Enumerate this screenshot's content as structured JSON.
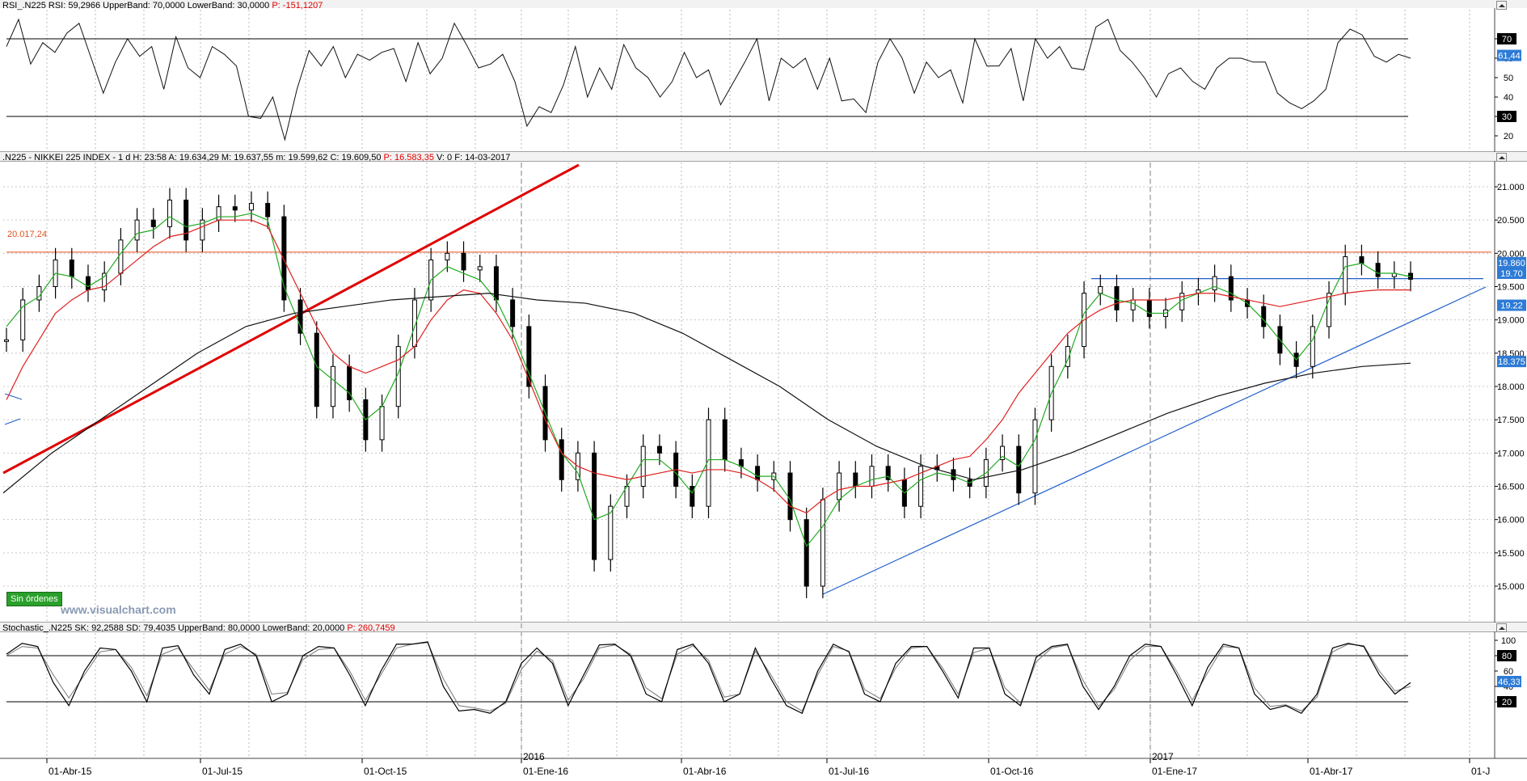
{
  "rsi_panel": {
    "name": "RSI_.N225",
    "rsi_label": "RSI: 59,2966",
    "upper_label": "UpperBand: 70,0000",
    "lower_label": "LowerBand: 30,0000",
    "p_label": "P: -151,1207",
    "y_ticks": [
      "70",
      "60",
      "50",
      "40",
      "30",
      "20"
    ],
    "levels": [
      70,
      30
    ],
    "last_value_label": "61,44",
    "upper_tag": "70",
    "lower_tag": "30"
  },
  "price_panel": {
    "name": ".N225 - NIKKEI 225 INDEX - 1 d",
    "h_label": "H: 23:58",
    "a_label": "A: 19.634,29",
    "m_label": "M: 19.637,55",
    "m2_label": "m: 19.599,62",
    "c_label": "C: 19.609,50",
    "p_label": "P: 16.583,35",
    "v_label": "V: 0",
    "f_label": "F: 14-03-2017",
    "y_ticks": [
      "21.000",
      "20.500",
      "20.000",
      "19.500",
      "19.000",
      "18.500",
      "18.000",
      "17.500",
      "17.000",
      "16.500",
      "16.000",
      "15.500",
      "15.000"
    ],
    "resistance_label": "20.017,24",
    "price_tags": [
      "19.860",
      "19.70",
      "19.22",
      "18.375"
    ],
    "status_badge": "Sin órdenes",
    "watermark": "www.visualchart.com"
  },
  "stoch_panel": {
    "name": "Stochastic_.N225",
    "sk_label": "SK: 92,2588",
    "sd_label": "SD: 79,4035",
    "upper_label": "UpperBand: 80,0000",
    "lower_label": "LowerBand: 20,0000",
    "p_label": "P: 260,7459",
    "y_ticks": [
      "100",
      "80",
      "60",
      "40",
      "20"
    ],
    "levels": [
      80,
      20
    ],
    "last_value_label": "46,33",
    "upper_tag": "80",
    "lower_tag": "20"
  },
  "x_axis": {
    "labels": [
      "01-Abr-15",
      "01-Jul-15",
      "01-Oct-15",
      "01-Ene-16",
      "01-Abr-16",
      "01-Jul-16",
      "01-Oct-16",
      "01-Ene-17",
      "01-Abr-17",
      "01-J"
    ],
    "year_labels": [
      "2016",
      "2017"
    ]
  },
  "colors": {
    "sma_fast": "#22aa22",
    "sma_mid": "#e02020",
    "sma_slow": "#111111",
    "trendline_red": "#e00000",
    "trendline_blue": "#1f5fcc",
    "resistance": "#e8501a",
    "tag_blue": "#2e7bd6",
    "badge_green": "#2aa02a"
  },
  "chart_data": [
    {
      "type": "line",
      "title": "RSI_.N225",
      "series": [
        {
          "name": "RSI",
          "values": [
            66,
            80,
            57,
            68,
            63,
            73,
            78,
            60,
            42,
            58,
            70,
            61,
            66,
            44,
            71,
            55,
            50,
            66,
            62,
            56,
            30,
            29,
            40,
            18,
            44,
            64,
            56,
            66,
            50,
            62,
            59,
            63,
            65,
            48,
            68,
            52,
            60,
            78,
            67,
            55,
            57,
            62,
            48,
            25,
            35,
            32,
            46,
            66,
            40,
            55,
            44,
            67,
            55,
            50,
            40,
            48,
            63,
            50,
            54,
            36,
            47,
            58,
            70,
            38,
            60,
            55,
            60,
            44,
            60,
            38,
            39,
            32,
            58,
            70,
            60,
            42,
            58,
            50,
            54,
            37,
            70,
            56,
            56,
            65,
            38,
            70,
            60,
            66,
            55,
            54,
            76,
            80,
            64,
            58,
            50,
            40,
            52,
            55,
            48,
            44,
            55,
            60,
            60,
            58,
            58,
            42,
            37,
            34,
            38,
            44,
            68,
            75,
            72,
            61,
            58,
            62,
            60
          ]
        }
      ],
      "ylim": [
        10,
        85
      ]
    },
    {
      "type": "line",
      "title": ".N225 - NIKKEI 225 INDEX",
      "series": [
        {
          "name": "Close",
          "values": [
            18700,
            19300,
            19500,
            19900,
            19650,
            19450,
            19700,
            20200,
            20500,
            20400,
            20800,
            20200,
            20500,
            20700,
            20650,
            20750,
            20550,
            19300,
            18800,
            17700,
            18300,
            17800,
            17200,
            17700,
            18600,
            19300,
            19900,
            20000,
            19750,
            19800,
            19300,
            18900,
            18000,
            17200,
            16600,
            17000,
            15400,
            16200,
            16500,
            17100,
            17000,
            16500,
            16200,
            17500,
            16900,
            16800,
            16600,
            16700,
            16000,
            15000,
            16300,
            16700,
            16500,
            16800,
            16600,
            16200,
            16800,
            16750,
            16600,
            16500,
            16900,
            17100,
            16400,
            17500,
            18300,
            18600,
            19400,
            19500,
            19150,
            19300,
            19050,
            19150,
            19400,
            19450,
            19650,
            19300,
            19200,
            18900,
            18500,
            18300,
            18900,
            19400,
            19950,
            19850,
            19650,
            19700,
            19610
          ]
        },
        {
          "name": "Fast MA",
          "values": [
            18900,
            19200,
            19350,
            19700,
            19650,
            19500,
            19650,
            20000,
            20300,
            20350,
            20550,
            20400,
            20450,
            20550,
            20550,
            20600,
            20500,
            19500,
            18900,
            18300,
            18100,
            17900,
            17500,
            17700,
            18200,
            18900,
            19600,
            19800,
            19700,
            19600,
            19300,
            18800,
            18200,
            17600,
            17000,
            16700,
            16000,
            16100,
            16500,
            16900,
            16900,
            16700,
            16400,
            16900,
            16900,
            16800,
            16650,
            16650,
            16300,
            15600,
            15900,
            16300,
            16500,
            16600,
            16650,
            16400,
            16600,
            16700,
            16650,
            16550,
            16700,
            16950,
            16800,
            17200,
            17900,
            18400,
            19100,
            19400,
            19300,
            19250,
            19100,
            19100,
            19300,
            19400,
            19500,
            19400,
            19250,
            19000,
            18700,
            18400,
            18700,
            19300,
            19800,
            19850,
            19700,
            19700,
            19650
          ]
        },
        {
          "name": "Mid MA",
          "values": [
            17800,
            18300,
            18700,
            19100,
            19300,
            19450,
            19500,
            19700,
            19900,
            20100,
            20250,
            20300,
            20400,
            20500,
            20500,
            20500,
            20400,
            19900,
            19400,
            18900,
            18500,
            18300,
            18200,
            18300,
            18400,
            18600,
            19000,
            19300,
            19450,
            19400,
            19100,
            18700,
            18100,
            17500,
            17000,
            16800,
            16700,
            16650,
            16600,
            16650,
            16700,
            16750,
            16700,
            16750,
            16750,
            16700,
            16600,
            16450,
            16200,
            16100,
            16300,
            16450,
            16500,
            16500,
            16550,
            16600,
            16700,
            16800,
            16900,
            16950,
            17200,
            17500,
            17900,
            18200,
            18500,
            18800,
            19000,
            19150,
            19250,
            19300,
            19300,
            19300,
            19350,
            19400,
            19400,
            19350,
            19300,
            19250,
            19200,
            19250,
            19300,
            19350,
            19400,
            19430,
            19450,
            19450,
            19450
          ]
        },
        {
          "name": "Slow MA",
          "values": [
            16400,
            17000,
            17500,
            18000,
            18500,
            18900,
            19100,
            19200,
            19300,
            19350,
            19400,
            19300,
            19250,
            19100,
            18800,
            18400,
            18000,
            17500,
            17100,
            16800,
            16600,
            16750,
            17000,
            17300,
            17600,
            17850,
            18050,
            18200,
            18300,
            18350
          ]
        }
      ],
      "annotations": {
        "resistance": 20017.24,
        "support_line": 19620
      },
      "ylim": [
        14600,
        21300
      ]
    },
    {
      "type": "line",
      "title": "Stochastic_.N225",
      "series": [
        {
          "name": "SK",
          "values": [
            82,
            96,
            92,
            45,
            15,
            60,
            90,
            88,
            60,
            20,
            90,
            93,
            55,
            30,
            88,
            95,
            80,
            20,
            30,
            80,
            92,
            90,
            55,
            15,
            60,
            95,
            95,
            98,
            40,
            8,
            10,
            5,
            20,
            70,
            90,
            70,
            15,
            55,
            94,
            95,
            80,
            30,
            20,
            88,
            95,
            70,
            20,
            30,
            90,
            50,
            15,
            5,
            60,
            95,
            85,
            30,
            20,
            70,
            92,
            92,
            60,
            25,
            90,
            90,
            30,
            15,
            78,
            92,
            95,
            40,
            10,
            40,
            80,
            95,
            92,
            55,
            15,
            65,
            95,
            90,
            30,
            10,
            15,
            5,
            30,
            90,
            96,
            92,
            55,
            30,
            45
          ]
        },
        {
          "name": "SD",
          "values": [
            80,
            92,
            90,
            55,
            25,
            55,
            85,
            88,
            65,
            28,
            82,
            90,
            62,
            35,
            82,
            92,
            82,
            30,
            32,
            75,
            88,
            90,
            60,
            22,
            55,
            90,
            95,
            97,
            50,
            15,
            12,
            8,
            18,
            62,
            86,
            74,
            22,
            50,
            90,
            94,
            82,
            38,
            24,
            82,
            93,
            74,
            26,
            30,
            86,
            55,
            20,
            8,
            55,
            92,
            86,
            36,
            24,
            64,
            90,
            92,
            64,
            30,
            84,
            90,
            38,
            18,
            72,
            90,
            94,
            48,
            14,
            36,
            74,
            92,
            92,
            60,
            22,
            58,
            92,
            90,
            38,
            14,
            16,
            8,
            26,
            85,
            95,
            93,
            60,
            34,
            40
          ]
        }
      ],
      "ylim": [
        0,
        100
      ]
    }
  ]
}
